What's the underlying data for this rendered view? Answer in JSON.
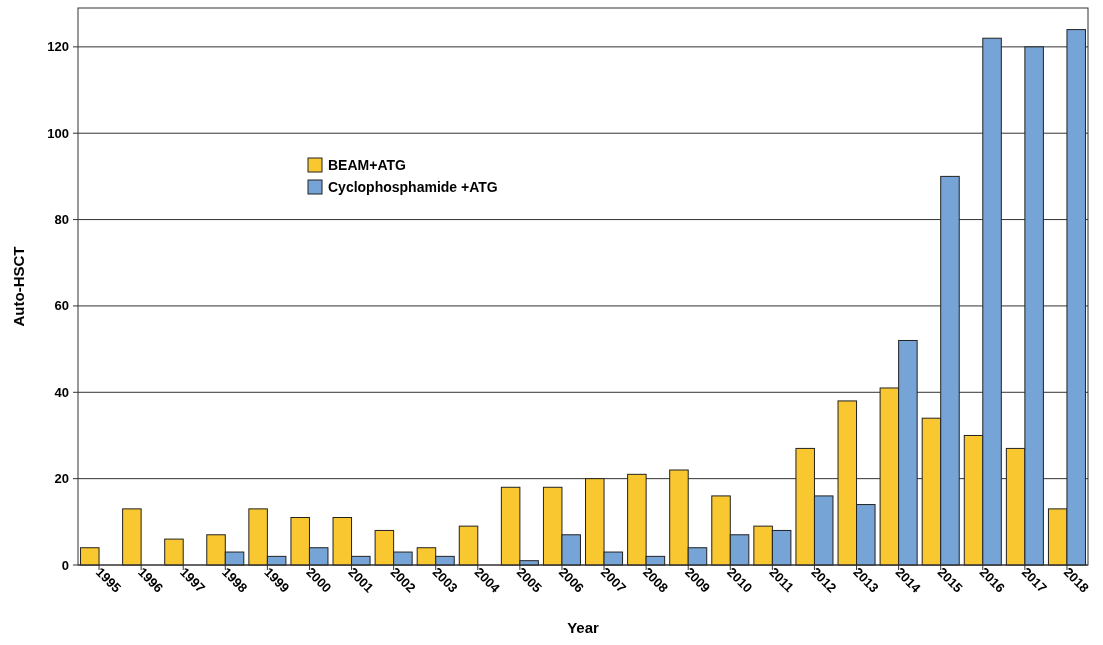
{
  "chart_data": {
    "type": "bar",
    "xlabel": "Year",
    "ylabel": "Auto-HSCT",
    "categories": [
      "1995",
      "1996",
      "1997",
      "1998",
      "1999",
      "2000",
      "2001",
      "2002",
      "2003",
      "2004",
      "2005",
      "2006",
      "2007",
      "2008",
      "2009",
      "2010",
      "2011",
      "2012",
      "2013",
      "2014",
      "2015",
      "2016",
      "2017",
      "2018"
    ],
    "series": [
      {
        "name": "BEAM+ATG",
        "color": "#f9c831",
        "values": [
          4,
          13,
          6,
          7,
          13,
          11,
          11,
          8,
          4,
          9,
          18,
          18,
          20,
          21,
          22,
          16,
          9,
          27,
          38,
          41,
          34,
          30,
          27,
          13
        ]
      },
      {
        "name": "Cyclophosphamide +ATG",
        "color": "#77a4d6",
        "values": [
          0,
          0,
          0,
          3,
          2,
          4,
          2,
          3,
          2,
          0,
          1,
          7,
          3,
          2,
          4,
          7,
          8,
          16,
          14,
          52,
          90,
          122,
          120,
          124
        ]
      }
    ],
    "ylim": [
      0,
      129
    ],
    "yticks": [
      0,
      20,
      40,
      60,
      80,
      100,
      120
    ],
    "grid": "y",
    "legend": "top left"
  }
}
